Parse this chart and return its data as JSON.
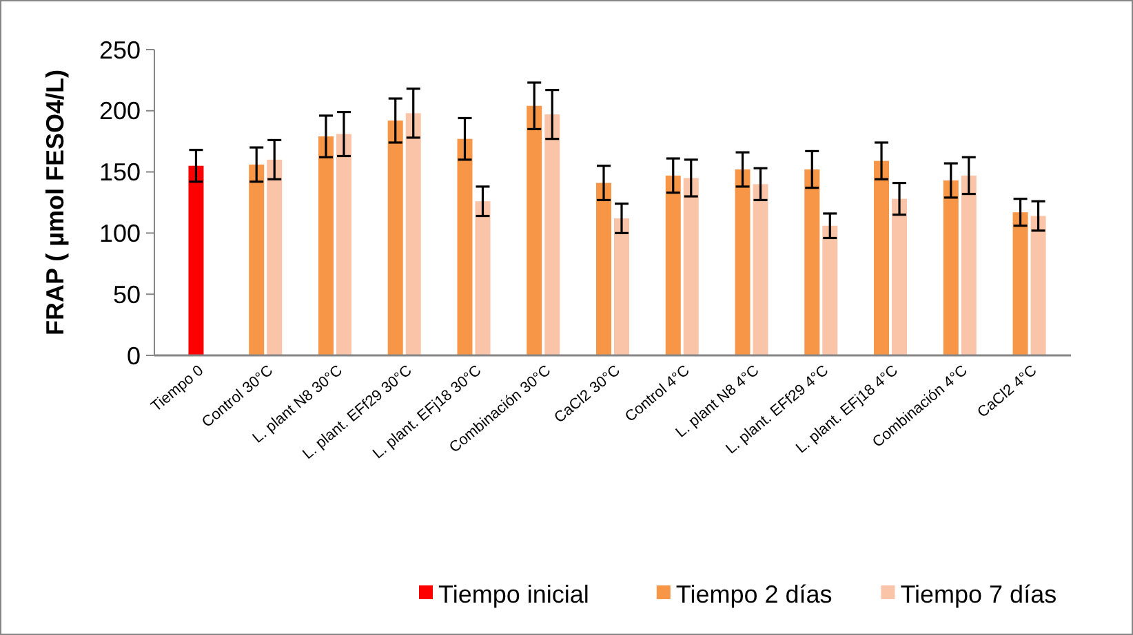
{
  "chart_data": {
    "type": "bar",
    "ylabel": "FRAP ( µmol FESO4/L)",
    "categories": [
      "Tiempo 0",
      "Control 30°C",
      "L. plant N8 30°C",
      "L. plant. EFf29 30°C",
      "L. plant. EFj18 30°C",
      "Combinación 30°C",
      "CaCl2 30°C",
      "Control 4°C",
      "L. plant N8 4°C",
      "L. plant. EFf29 4°C",
      "L. plant. EFj18 4°C",
      "Combinación 4°C",
      "CaCl2 4°C"
    ],
    "series": [
      {
        "name": "Tiempo inicial",
        "color": "#ff0000",
        "values": [
          155,
          null,
          null,
          null,
          null,
          null,
          null,
          null,
          null,
          null,
          null,
          null,
          null
        ],
        "errors": [
          13,
          null,
          null,
          null,
          null,
          null,
          null,
          null,
          null,
          null,
          null,
          null,
          null
        ]
      },
      {
        "name": "Tiempo 2 días",
        "color": "#f79646",
        "values": [
          null,
          156,
          179,
          192,
          177,
          204,
          141,
          147,
          152,
          152,
          159,
          143,
          117
        ],
        "errors": [
          null,
          14,
          17,
          18,
          17,
          19,
          14,
          14,
          14,
          15,
          15,
          14,
          11
        ]
      },
      {
        "name": "Tiempo 7 días",
        "color": "#fac4a8",
        "values": [
          null,
          160,
          181,
          198,
          126,
          197,
          112,
          145,
          140,
          106,
          128,
          147,
          114
        ],
        "errors": [
          null,
          16,
          18,
          20,
          12,
          20,
          12,
          15,
          13,
          10,
          13,
          15,
          12
        ]
      }
    ],
    "ylim": [
      0,
      250
    ],
    "yticks": [
      0,
      50,
      100,
      150,
      200,
      250
    ],
    "grid": false,
    "legend": "bottom"
  }
}
